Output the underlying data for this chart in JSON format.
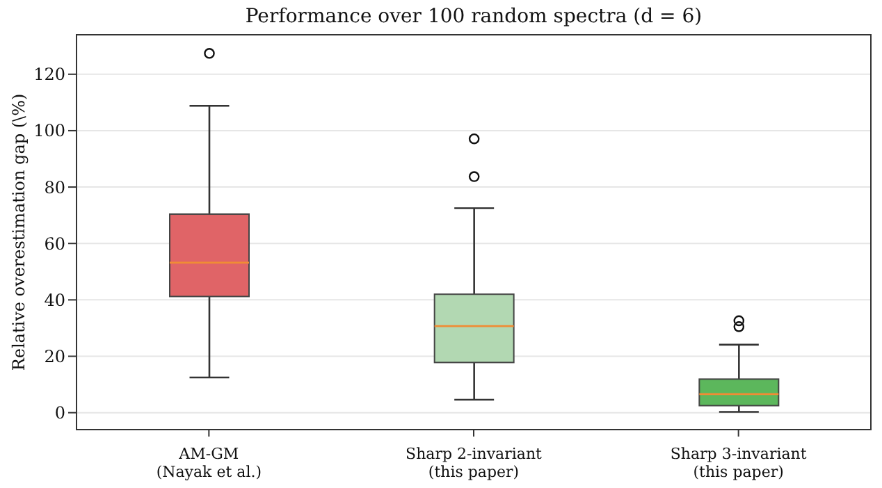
{
  "chart_data": {
    "type": "box",
    "title": "Performance over 100 random spectra (d = 6)",
    "ylabel": "Relative overestimation gap (\\%)",
    "categories": [
      "AM-GM\n(Nayak et al.)",
      "Sharp 2-invariant\n(this paper)",
      "Sharp 3-invariant\n(this paper)"
    ],
    "colors": [
      "#e06467",
      "#b2d8b2",
      "#5cb75c"
    ],
    "boxes": [
      {
        "low": 12.5,
        "q1": 41.2,
        "median": 53.2,
        "q3": 70.4,
        "high": 108.8,
        "outliers": [
          127.4
        ]
      },
      {
        "low": 4.6,
        "q1": 17.8,
        "median": 30.7,
        "q3": 42.0,
        "high": 72.5,
        "outliers": [
          97.1,
          83.7
        ]
      },
      {
        "low": 0.3,
        "q1": 2.5,
        "median": 6.6,
        "q3": 11.9,
        "high": 24.1,
        "outliers": [
          32.6,
          30.5
        ]
      }
    ],
    "ylim": [
      -6,
      134
    ],
    "yticks": [
      0,
      20,
      40,
      60,
      80,
      100,
      120
    ],
    "grid": "y"
  }
}
